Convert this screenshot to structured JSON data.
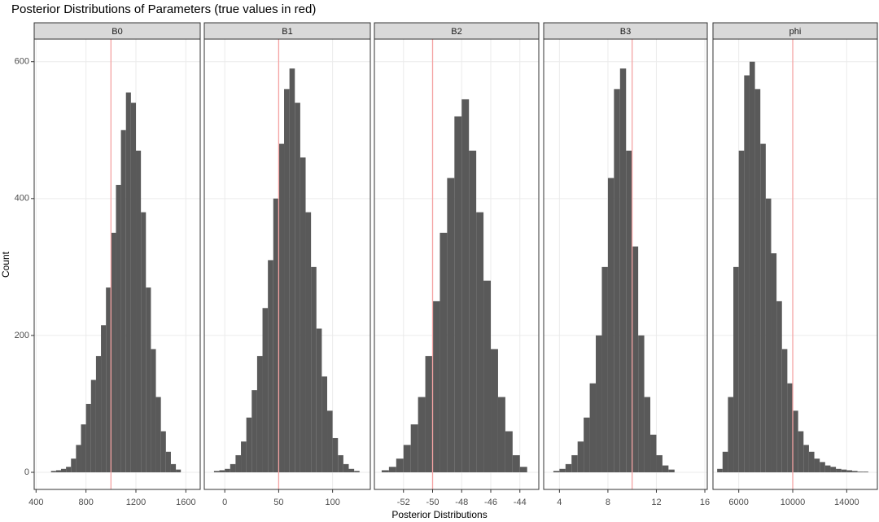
{
  "title": "Posterior Distributions of Parameters (true values in red)",
  "x_label": "Posterior Distributions",
  "y_label": "Count",
  "chart_data": [
    {
      "type": "histogram",
      "title": "B0",
      "color": "#595959",
      "true_value": 1000,
      "true_color": "#f4a3a3",
      "bins": [
        520,
        560,
        600,
        640,
        680,
        720,
        760,
        800,
        840,
        880,
        920,
        960,
        1000,
        1040,
        1080,
        1120,
        1160,
        1200,
        1240,
        1280,
        1320,
        1360,
        1400,
        1440,
        1480,
        1520,
        1560
      ],
      "counts": [
        2,
        3,
        5,
        8,
        20,
        40,
        70,
        100,
        135,
        170,
        215,
        270,
        350,
        420,
        500,
        555,
        540,
        470,
        380,
        270,
        180,
        110,
        60,
        30,
        12,
        4
      ],
      "xlim": [
        385,
        1715
      ],
      "xticks": [
        400,
        800,
        1200,
        1600
      ],
      "ylim": [
        -25,
        633
      ],
      "yticks": [
        0,
        200,
        400,
        600
      ],
      "grid": true
    },
    {
      "type": "histogram",
      "title": "B1",
      "color": "#595959",
      "true_value": 50,
      "true_color": "#f4a3a3",
      "bins": [
        -10,
        -5,
        0,
        5,
        10,
        15,
        20,
        25,
        30,
        35,
        40,
        45,
        50,
        55,
        60,
        65,
        70,
        75,
        80,
        85,
        90,
        95,
        100,
        105,
        110,
        115,
        120,
        125
      ],
      "counts": [
        2,
        3,
        5,
        12,
        25,
        45,
        80,
        120,
        170,
        240,
        310,
        400,
        480,
        560,
        590,
        540,
        460,
        380,
        300,
        210,
        140,
        90,
        50,
        25,
        12,
        5,
        2
      ],
      "xlim": [
        -19,
        135
      ],
      "xticks": [
        0,
        50,
        100
      ],
      "ylim": [
        -25,
        633
      ],
      "yticks": [
        0,
        200,
        400,
        600
      ],
      "grid": true
    },
    {
      "type": "histogram",
      "title": "B2",
      "color": "#595959",
      "true_value": -50,
      "true_color": "#f4a3a3",
      "bins": [
        -53.5,
        -53,
        -52.5,
        -52,
        -51.5,
        -51,
        -50.5,
        -50,
        -49.5,
        -49,
        -48.5,
        -48,
        -47.5,
        -47,
        -46.5,
        -46,
        -45.5,
        -45,
        -44.5,
        -44,
        -43.5
      ],
      "counts": [
        3,
        8,
        20,
        40,
        70,
        110,
        170,
        250,
        350,
        430,
        520,
        545,
        470,
        380,
        280,
        180,
        110,
        60,
        25,
        8
      ],
      "xlim": [
        -54.0,
        -42.7
      ],
      "xticks": [
        -52,
        -50,
        -48,
        -46,
        -44
      ],
      "ylim": [
        -25,
        633
      ],
      "yticks": [
        0,
        200,
        400,
        600
      ],
      "grid": true
    },
    {
      "type": "histogram",
      "title": "B3",
      "color": "#595959",
      "true_value": 10,
      "true_color": "#f4a3a3",
      "bins": [
        3.5,
        4,
        4.5,
        5,
        5.5,
        6,
        6.5,
        7,
        7.5,
        8,
        8.5,
        9,
        9.5,
        10,
        10.5,
        11,
        11.5,
        12,
        12.5,
        13,
        13.5
      ],
      "counts": [
        2,
        5,
        12,
        25,
        45,
        80,
        130,
        200,
        300,
        430,
        560,
        590,
        470,
        330,
        200,
        110,
        55,
        25,
        10,
        4
      ],
      "xlim": [
        2.7,
        16.2
      ],
      "xticks": [
        4,
        8,
        12,
        16
      ],
      "ylim": [
        -25,
        633
      ],
      "yticks": [
        0,
        200,
        400,
        600
      ],
      "grid": true
    },
    {
      "type": "histogram",
      "title": "phi",
      "color": "#595959",
      "true_value": 10000,
      "true_color": "#f4a3a3",
      "bins": [
        4400,
        4800,
        5200,
        5600,
        6000,
        6400,
        6800,
        7200,
        7600,
        8000,
        8400,
        8800,
        9200,
        9600,
        10000,
        10400,
        10800,
        11200,
        11600,
        12000,
        12400,
        12800,
        13200,
        13600,
        14000,
        14400,
        14800,
        15200,
        15600
      ],
      "counts": [
        5,
        30,
        110,
        300,
        470,
        580,
        600,
        560,
        480,
        400,
        320,
        250,
        180,
        130,
        90,
        60,
        40,
        30,
        20,
        15,
        10,
        8,
        5,
        4,
        3,
        2,
        1,
        1
      ],
      "xlim": [
        4090,
        16270
      ],
      "xticks": [
        6000,
        10000,
        14000
      ],
      "ylim": [
        -25,
        633
      ],
      "yticks": [
        0,
        200,
        400,
        600
      ],
      "grid": true
    }
  ]
}
